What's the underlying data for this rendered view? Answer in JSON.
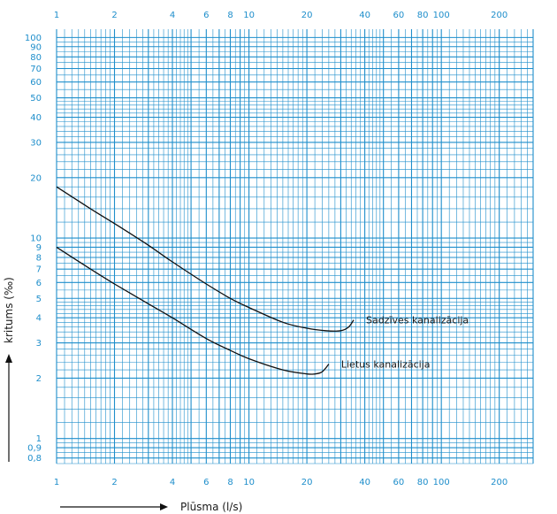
{
  "chart_data": {
    "type": "line",
    "xscale": "log",
    "yscale": "log",
    "xlim": [
      1,
      300
    ],
    "ylim": [
      0.75,
      110
    ],
    "grid": true,
    "xlabel": "Plūsma (l/s)",
    "ylabel": "kritums (‰)",
    "x_ticks": [
      {
        "value": 1,
        "label": "1"
      },
      {
        "value": 2,
        "label": "2"
      },
      {
        "value": 4,
        "label": "4"
      },
      {
        "value": 6,
        "label": "6"
      },
      {
        "value": 8,
        "label": "8"
      },
      {
        "value": 10,
        "label": "10"
      },
      {
        "value": 20,
        "label": "20"
      },
      {
        "value": 40,
        "label": "40"
      },
      {
        "value": 60,
        "label": "60"
      },
      {
        "value": 80,
        "label": "80"
      },
      {
        "value": 100,
        "label": "100"
      },
      {
        "value": 200,
        "label": "200"
      }
    ],
    "y_ticks": [
      {
        "value": 0.8,
        "label": "0,8"
      },
      {
        "value": 0.9,
        "label": "0,9"
      },
      {
        "value": 1,
        "label": "1"
      },
      {
        "value": 2,
        "label": "2"
      },
      {
        "value": 3,
        "label": "3"
      },
      {
        "value": 4,
        "label": "4"
      },
      {
        "value": 5,
        "label": "5"
      },
      {
        "value": 6,
        "label": "6"
      },
      {
        "value": 7,
        "label": "7"
      },
      {
        "value": 8,
        "label": "8"
      },
      {
        "value": 9,
        "label": "9"
      },
      {
        "value": 10,
        "label": "10"
      },
      {
        "value": 20,
        "label": "20"
      },
      {
        "value": 30,
        "label": "30"
      },
      {
        "value": 40,
        "label": "40"
      },
      {
        "value": 50,
        "label": "50"
      },
      {
        "value": 60,
        "label": "60"
      },
      {
        "value": 70,
        "label": "70"
      },
      {
        "value": 80,
        "label": "80"
      },
      {
        "value": 90,
        "label": "90"
      },
      {
        "value": 100,
        "label": "100"
      }
    ],
    "series": [
      {
        "name": "Sadzīves kanalizācija",
        "x": [
          1,
          1.5,
          2,
          3,
          4,
          6,
          8,
          10,
          15,
          20,
          25,
          30,
          33,
          35
        ],
        "y": [
          18,
          14,
          11.8,
          9.2,
          7.6,
          5.9,
          5.0,
          4.5,
          3.8,
          3.55,
          3.45,
          3.45,
          3.6,
          3.9
        ]
      },
      {
        "name": "Lietus kanalizācija",
        "x": [
          1,
          1.5,
          2,
          3,
          4,
          6,
          8,
          10,
          15,
          20,
          22,
          24,
          26
        ],
        "y": [
          9,
          7.0,
          5.9,
          4.7,
          4.0,
          3.15,
          2.75,
          2.5,
          2.2,
          2.1,
          2.1,
          2.15,
          2.35
        ]
      }
    ],
    "colors": {
      "grid": "#1e8ecb",
      "tick_label": "#1e8ecb",
      "curve": "#111111",
      "text": "#1a1a1a"
    }
  }
}
